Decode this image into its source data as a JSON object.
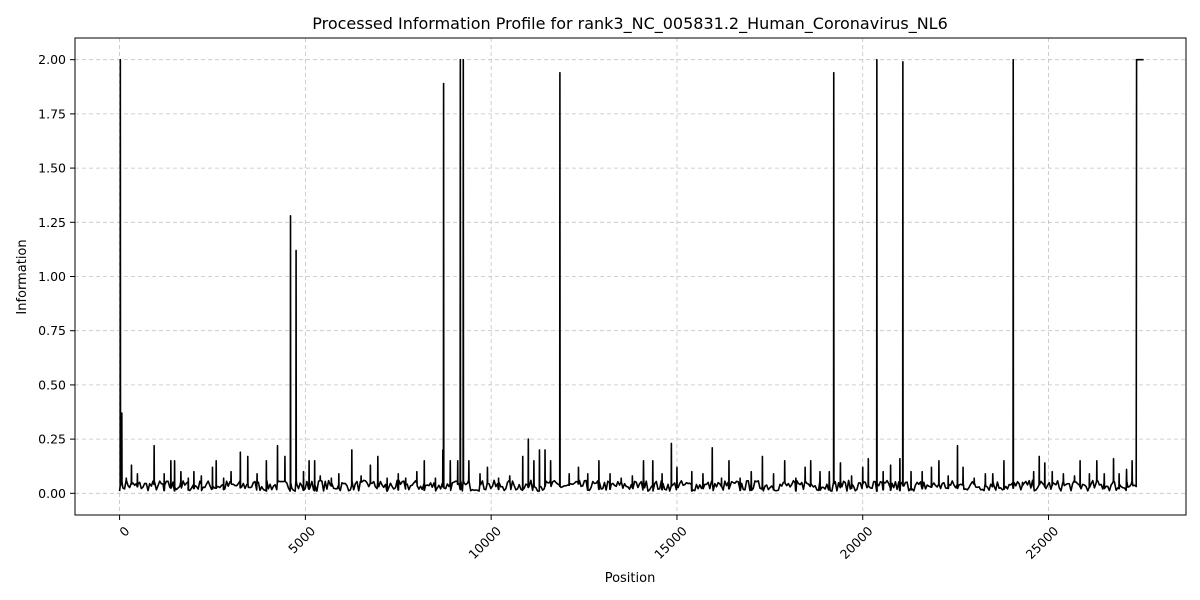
{
  "chart_data": {
    "type": "line",
    "title": "Processed Information Profile for rank3_NC_005831.2_Human_Coronavirus_NL6",
    "xlabel": "Position",
    "ylabel": "Information",
    "xlim": [
      -1200,
      28700
    ],
    "ylim": [
      -0.1,
      2.1
    ],
    "xticks": [
      0,
      5000,
      10000,
      15000,
      20000,
      25000
    ],
    "yticks": [
      0.0,
      0.25,
      0.5,
      0.75,
      1.0,
      1.25,
      1.5,
      1.75,
      2.0
    ],
    "grid": true,
    "legend": "none",
    "line_color": "#000000",
    "baseline": {
      "start": 0,
      "end": 27500,
      "step": 45,
      "min": 0.01,
      "max": 0.06
    },
    "spikes": [
      [
        20,
        2.0
      ],
      [
        60,
        0.37
      ],
      [
        180,
        0.07
      ],
      [
        320,
        0.13
      ],
      [
        480,
        0.09
      ],
      [
        930,
        0.22
      ],
      [
        1200,
        0.09
      ],
      [
        1380,
        0.15
      ],
      [
        1480,
        0.15
      ],
      [
        1650,
        0.1
      ],
      [
        1850,
        0.07
      ],
      [
        2000,
        0.1
      ],
      [
        2200,
        0.08
      ],
      [
        2500,
        0.12
      ],
      [
        2600,
        0.15
      ],
      [
        2800,
        0.07
      ],
      [
        3000,
        0.1
      ],
      [
        3250,
        0.19
      ],
      [
        3450,
        0.17
      ],
      [
        3700,
        0.09
      ],
      [
        3950,
        0.15
      ],
      [
        4250,
        0.22
      ],
      [
        4450,
        0.17
      ],
      [
        4600,
        1.28
      ],
      [
        4750,
        1.12
      ],
      [
        4950,
        0.1
      ],
      [
        5100,
        0.15
      ],
      [
        5250,
        0.15
      ],
      [
        5400,
        0.08
      ],
      [
        5700,
        0.07
      ],
      [
        5900,
        0.09
      ],
      [
        6250,
        0.2
      ],
      [
        6500,
        0.08
      ],
      [
        6750,
        0.13
      ],
      [
        6950,
        0.17
      ],
      [
        7200,
        0.07
      ],
      [
        7500,
        0.09
      ],
      [
        7700,
        0.07
      ],
      [
        8000,
        0.1
      ],
      [
        8200,
        0.15
      ],
      [
        8500,
        0.07
      ],
      [
        8700,
        0.2
      ],
      [
        8720,
        1.89
      ],
      [
        8900,
        0.15
      ],
      [
        9100,
        0.15
      ],
      [
        9170,
        2.0
      ],
      [
        9250,
        2.0
      ],
      [
        9400,
        0.15
      ],
      [
        9700,
        0.09
      ],
      [
        9900,
        0.12
      ],
      [
        10200,
        0.07
      ],
      [
        10500,
        0.08
      ],
      [
        10850,
        0.17
      ],
      [
        11000,
        0.25
      ],
      [
        11150,
        0.15
      ],
      [
        11300,
        0.2
      ],
      [
        11450,
        0.2
      ],
      [
        11600,
        0.15
      ],
      [
        11850,
        1.94
      ],
      [
        12100,
        0.09
      ],
      [
        12350,
        0.12
      ],
      [
        12600,
        0.09
      ],
      [
        12900,
        0.15
      ],
      [
        13200,
        0.09
      ],
      [
        13500,
        0.07
      ],
      [
        13800,
        0.08
      ],
      [
        14100,
        0.15
      ],
      [
        14350,
        0.15
      ],
      [
        14600,
        0.09
      ],
      [
        14850,
        0.23
      ],
      [
        15000,
        0.12
      ],
      [
        15400,
        0.1
      ],
      [
        15700,
        0.09
      ],
      [
        15950,
        0.21
      ],
      [
        16200,
        0.07
      ],
      [
        16400,
        0.15
      ],
      [
        16700,
        0.07
      ],
      [
        17000,
        0.1
      ],
      [
        17300,
        0.17
      ],
      [
        17600,
        0.09
      ],
      [
        17900,
        0.15
      ],
      [
        18200,
        0.07
      ],
      [
        18450,
        0.12
      ],
      [
        18600,
        0.15
      ],
      [
        18850,
        0.1
      ],
      [
        19100,
        0.1
      ],
      [
        19220,
        1.94
      ],
      [
        19400,
        0.14
      ],
      [
        19700,
        0.08
      ],
      [
        20000,
        0.12
      ],
      [
        20150,
        0.16
      ],
      [
        20380,
        2.0
      ],
      [
        20550,
        0.1
      ],
      [
        20750,
        0.13
      ],
      [
        21000,
        0.16
      ],
      [
        21080,
        1.99
      ],
      [
        21300,
        0.1
      ],
      [
        21600,
        0.1
      ],
      [
        21850,
        0.12
      ],
      [
        22050,
        0.15
      ],
      [
        22300,
        0.08
      ],
      [
        22550,
        0.22
      ],
      [
        22700,
        0.12
      ],
      [
        23000,
        0.07
      ],
      [
        23300,
        0.09
      ],
      [
        23500,
        0.09
      ],
      [
        23800,
        0.15
      ],
      [
        24050,
        2.0
      ],
      [
        24300,
        0.05
      ],
      [
        24600,
        0.1
      ],
      [
        24750,
        0.17
      ],
      [
        24900,
        0.14
      ],
      [
        25100,
        0.1
      ],
      [
        25400,
        0.09
      ],
      [
        25700,
        0.08
      ],
      [
        25850,
        0.15
      ],
      [
        26100,
        0.09
      ],
      [
        26300,
        0.15
      ],
      [
        26500,
        0.09
      ],
      [
        26750,
        0.16
      ],
      [
        26900,
        0.09
      ],
      [
        27100,
        0.11
      ],
      [
        27250,
        0.15
      ]
    ],
    "plateau": {
      "start": 27370,
      "end": 27560,
      "value": 2.0
    }
  }
}
